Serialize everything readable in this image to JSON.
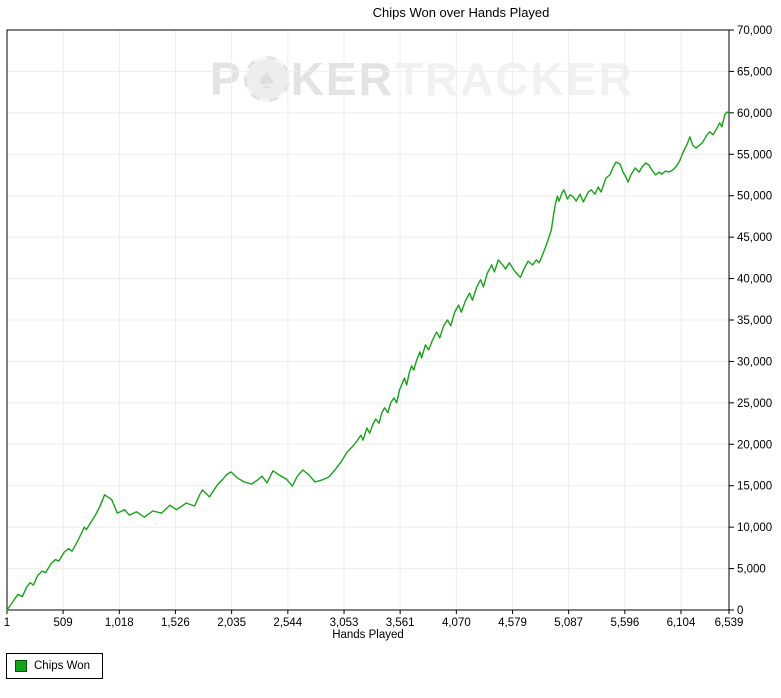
{
  "title": "Chips Won over Hands Played",
  "watermark": {
    "part1": "P",
    "spade": "♠",
    "part2": "KER",
    "part3": "TRACKER"
  },
  "legend": {
    "label": "Chips Won"
  },
  "colors": {
    "line": "#17a317",
    "legend_swatch": "#17a317",
    "legend_swatch_border": "#0a520a",
    "grid": "#ededed",
    "axis": "#000000",
    "background": "#ffffff",
    "watermark_dark": "#e3e3e3",
    "watermark_light": "#f1f1f1"
  },
  "chart_data": {
    "type": "line",
    "title": "Chips Won over Hands Played",
    "xlabel": "Hands Played",
    "ylabel": "",
    "xlim": [
      1,
      6539
    ],
    "ylim": [
      0,
      70000
    ],
    "grid": true,
    "y_axis_side": "right",
    "legend_position": "bottom-left",
    "x_ticks": {
      "values": [
        1,
        509,
        1018,
        1526,
        2035,
        2544,
        3053,
        3561,
        4070,
        4579,
        5087,
        5596,
        6104,
        6539
      ],
      "labels": [
        "1",
        "509",
        "1,018",
        "1,526",
        "2,035",
        "2,544",
        "3,053",
        "3,561",
        "4,070",
        "4,579",
        "5,087",
        "5,596",
        "6,104",
        "6,539"
      ]
    },
    "y_ticks": {
      "values": [
        0,
        5000,
        10000,
        15000,
        20000,
        25000,
        30000,
        35000,
        40000,
        45000,
        50000,
        55000,
        60000,
        65000,
        70000
      ],
      "labels": [
        "0",
        "5,000",
        "10,000",
        "15,000",
        "20,000",
        "25,000",
        "30,000",
        "35,000",
        "40,000",
        "45,000",
        "50,000",
        "55,000",
        "60,000",
        "65,000",
        "70,000"
      ]
    },
    "series": [
      {
        "name": "Chips Won",
        "color": "#17a317",
        "points": [
          [
            1,
            0
          ],
          [
            50,
            900
          ],
          [
            100,
            1900
          ],
          [
            140,
            1600
          ],
          [
            180,
            2800
          ],
          [
            210,
            3300
          ],
          [
            240,
            3000
          ],
          [
            280,
            4200
          ],
          [
            320,
            4700
          ],
          [
            350,
            4500
          ],
          [
            400,
            5600
          ],
          [
            440,
            6100
          ],
          [
            470,
            5900
          ],
          [
            520,
            7000
          ],
          [
            560,
            7400
          ],
          [
            590,
            7100
          ],
          [
            640,
            8300
          ],
          [
            680,
            9400
          ],
          [
            700,
            10000
          ],
          [
            720,
            9700
          ],
          [
            760,
            10600
          ],
          [
            800,
            11400
          ],
          [
            840,
            12450
          ],
          [
            885,
            13900
          ],
          [
            950,
            13300
          ],
          [
            1000,
            11700
          ],
          [
            1065,
            12100
          ],
          [
            1110,
            11450
          ],
          [
            1175,
            11850
          ],
          [
            1245,
            11200
          ],
          [
            1320,
            11950
          ],
          [
            1400,
            11700
          ],
          [
            1475,
            12650
          ],
          [
            1535,
            12100
          ],
          [
            1625,
            12900
          ],
          [
            1700,
            12550
          ],
          [
            1745,
            13900
          ],
          [
            1770,
            14500
          ],
          [
            1835,
            13650
          ],
          [
            1905,
            15100
          ],
          [
            1950,
            15700
          ],
          [
            1995,
            16400
          ],
          [
            2030,
            16650
          ],
          [
            2085,
            15950
          ],
          [
            2150,
            15450
          ],
          [
            2215,
            15200
          ],
          [
            2270,
            15700
          ],
          [
            2310,
            16150
          ],
          [
            2355,
            15350
          ],
          [
            2410,
            16800
          ],
          [
            2465,
            16300
          ],
          [
            2530,
            15800
          ],
          [
            2585,
            14950
          ],
          [
            2630,
            16150
          ],
          [
            2680,
            16900
          ],
          [
            2735,
            16300
          ],
          [
            2790,
            15450
          ],
          [
            2855,
            15700
          ],
          [
            2915,
            16050
          ],
          [
            2970,
            16900
          ],
          [
            3025,
            17850
          ],
          [
            3080,
            19050
          ],
          [
            3135,
            19800
          ],
          [
            3170,
            20400
          ],
          [
            3205,
            21100
          ],
          [
            3225,
            20500
          ],
          [
            3260,
            21950
          ],
          [
            3285,
            21350
          ],
          [
            3315,
            22450
          ],
          [
            3340,
            23050
          ],
          [
            3370,
            22550
          ],
          [
            3395,
            23800
          ],
          [
            3420,
            24400
          ],
          [
            3450,
            23800
          ],
          [
            3475,
            25000
          ],
          [
            3505,
            25600
          ],
          [
            3530,
            25000
          ],
          [
            3555,
            26550
          ],
          [
            3585,
            27500
          ],
          [
            3600,
            28000
          ],
          [
            3620,
            27150
          ],
          [
            3645,
            28700
          ],
          [
            3665,
            29450
          ],
          [
            3685,
            28950
          ],
          [
            3710,
            30150
          ],
          [
            3740,
            31150
          ],
          [
            3755,
            30400
          ],
          [
            3790,
            32000
          ],
          [
            3820,
            31400
          ],
          [
            3855,
            32600
          ],
          [
            3890,
            33550
          ],
          [
            3920,
            32850
          ],
          [
            3955,
            34300
          ],
          [
            3990,
            35000
          ],
          [
            4020,
            34300
          ],
          [
            4055,
            35950
          ],
          [
            4090,
            36800
          ],
          [
            4115,
            35950
          ],
          [
            4155,
            37400
          ],
          [
            4190,
            38250
          ],
          [
            4215,
            37400
          ],
          [
            4255,
            39000
          ],
          [
            4290,
            39850
          ],
          [
            4315,
            39000
          ],
          [
            4350,
            40650
          ],
          [
            4390,
            41650
          ],
          [
            4415,
            40800
          ],
          [
            4450,
            42250
          ],
          [
            4490,
            41650
          ],
          [
            4515,
            41150
          ],
          [
            4550,
            41900
          ],
          [
            4590,
            41050
          ],
          [
            4620,
            40550
          ],
          [
            4650,
            40150
          ],
          [
            4685,
            41250
          ],
          [
            4720,
            42100
          ],
          [
            4760,
            41650
          ],
          [
            4795,
            42250
          ],
          [
            4820,
            41900
          ],
          [
            4850,
            42850
          ],
          [
            4875,
            43700
          ],
          [
            4900,
            44650
          ],
          [
            4930,
            45850
          ],
          [
            4950,
            47650
          ],
          [
            4965,
            48900
          ],
          [
            4985,
            49950
          ],
          [
            5000,
            49350
          ],
          [
            5030,
            50450
          ],
          [
            5045,
            50700
          ],
          [
            5075,
            49600
          ],
          [
            5100,
            50100
          ],
          [
            5130,
            49850
          ],
          [
            5155,
            49350
          ],
          [
            5190,
            50200
          ],
          [
            5220,
            49250
          ],
          [
            5265,
            50450
          ],
          [
            5290,
            50700
          ],
          [
            5325,
            50200
          ],
          [
            5355,
            51050
          ],
          [
            5380,
            50450
          ],
          [
            5425,
            52150
          ],
          [
            5460,
            52500
          ],
          [
            5490,
            53450
          ],
          [
            5515,
            54050
          ],
          [
            5550,
            53850
          ],
          [
            5580,
            52850
          ],
          [
            5605,
            52250
          ],
          [
            5625,
            51650
          ],
          [
            5650,
            52500
          ],
          [
            5690,
            53350
          ],
          [
            5725,
            52850
          ],
          [
            5750,
            53450
          ],
          [
            5785,
            53950
          ],
          [
            5815,
            53700
          ],
          [
            5840,
            53100
          ],
          [
            5875,
            52500
          ],
          [
            5905,
            52850
          ],
          [
            5930,
            52600
          ],
          [
            5965,
            53000
          ],
          [
            5995,
            52850
          ],
          [
            6030,
            53100
          ],
          [
            6065,
            53600
          ],
          [
            6095,
            54300
          ],
          [
            6120,
            55150
          ],
          [
            6160,
            56200
          ],
          [
            6185,
            57100
          ],
          [
            6210,
            56100
          ],
          [
            6240,
            55750
          ],
          [
            6295,
            56350
          ],
          [
            6340,
            57350
          ],
          [
            6365,
            57700
          ],
          [
            6395,
            57350
          ],
          [
            6430,
            58150
          ],
          [
            6455,
            58800
          ],
          [
            6475,
            58300
          ],
          [
            6500,
            59750
          ],
          [
            6520,
            60100
          ],
          [
            6539,
            59950
          ]
        ]
      }
    ]
  }
}
